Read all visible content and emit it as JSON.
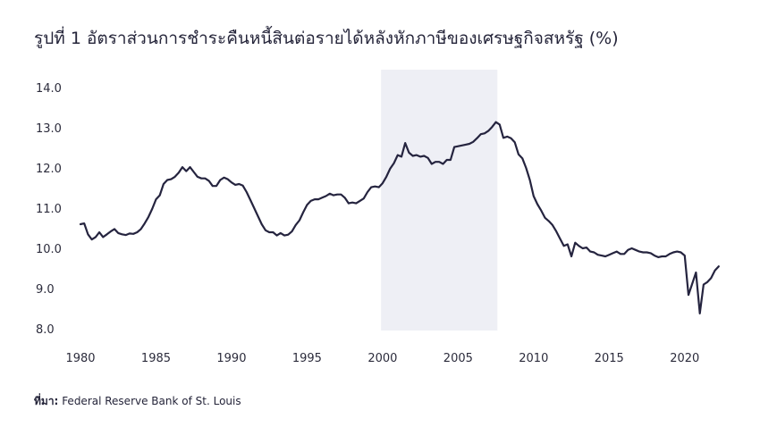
{
  "chart_data": {
    "type": "line",
    "title": "รูปที่ 1 อัตราส่วนการชำระคืนหนี้สินต่อรายได้หลังหักภาษีของเศรษฐกิจสหรัฐ (%)",
    "xlabel": "",
    "ylabel": "",
    "xlim": [
      1980,
      2022.5
    ],
    "ylim": [
      8.0,
      14.0
    ],
    "x_ticks": [
      "1980",
      "1985",
      "1990",
      "1995",
      "2000",
      "2005",
      "2010",
      "2015",
      "2020"
    ],
    "y_ticks": [
      "14.0",
      "13.0",
      "12.0",
      "11.0",
      "10.0",
      "9.0",
      "8.0"
    ],
    "grid": false,
    "shaded_region": {
      "x_start": 1999.9,
      "x_end": 2007.6,
      "color": "#eeeff5"
    },
    "series": [
      {
        "color": "#25243f",
        "x": [
          1980.0,
          1980.25,
          1980.5,
          1980.75,
          1981.0,
          1981.25,
          1981.5,
          1981.75,
          1982.0,
          1982.25,
          1982.5,
          1982.75,
          1983.0,
          1983.25,
          1983.5,
          1983.75,
          1984.0,
          1984.25,
          1984.5,
          1984.75,
          1985.0,
          1985.25,
          1985.5,
          1985.75,
          1986.0,
          1986.25,
          1986.5,
          1986.75,
          1987.0,
          1987.25,
          1987.5,
          1987.75,
          1988.0,
          1988.25,
          1988.5,
          1988.75,
          1989.0,
          1989.25,
          1989.5,
          1989.75,
          1990.0,
          1990.25,
          1990.5,
          1990.75,
          1991.0,
          1991.25,
          1991.5,
          1991.75,
          1992.0,
          1992.25,
          1992.5,
          1992.75,
          1993.0,
          1993.25,
          1993.5,
          1993.75,
          1994.0,
          1994.25,
          1994.5,
          1994.75,
          1995.0,
          1995.25,
          1995.5,
          1995.75,
          1996.0,
          1996.25,
          1996.5,
          1996.75,
          1997.0,
          1997.25,
          1997.5,
          1997.75,
          1998.0,
          1998.25,
          1998.5,
          1998.75,
          1999.0,
          1999.25,
          1999.5,
          1999.75,
          2000.0,
          2000.25,
          2000.5,
          2000.75,
          2001.0,
          2001.25,
          2001.5,
          2001.75,
          2002.0,
          2002.25,
          2002.5,
          2002.75,
          2003.0,
          2003.25,
          2003.5,
          2003.75,
          2004.0,
          2004.25,
          2004.5,
          2004.75,
          2005.0,
          2005.25,
          2005.5,
          2005.75,
          2006.0,
          2006.25,
          2006.5,
          2006.75,
          2007.0,
          2007.25,
          2007.5,
          2007.75,
          2008.0,
          2008.25,
          2008.5,
          2008.75,
          2009.0,
          2009.25,
          2009.5,
          2009.75,
          2010.0,
          2010.25,
          2010.5,
          2010.75,
          2011.0,
          2011.25,
          2011.5,
          2011.75,
          2012.0,
          2012.25,
          2012.5,
          2012.75,
          2013.0,
          2013.25,
          2013.5,
          2013.75,
          2014.0,
          2014.25,
          2014.5,
          2014.75,
          2015.0,
          2015.25,
          2015.5,
          2015.75,
          2016.0,
          2016.25,
          2016.5,
          2016.75,
          2017.0,
          2017.25,
          2017.5,
          2017.75,
          2018.0,
          2018.25,
          2018.5,
          2018.75,
          2019.0,
          2019.25,
          2019.5,
          2019.75,
          2020.0,
          2020.25,
          2020.5,
          2020.75,
          2021.0,
          2021.25,
          2021.5,
          2021.75,
          2022.0,
          2022.25
        ],
        "values": [
          10.6,
          10.62,
          10.35,
          10.22,
          10.28,
          10.4,
          10.28,
          10.35,
          10.42,
          10.48,
          10.38,
          10.35,
          10.33,
          10.37,
          10.36,
          10.4,
          10.48,
          10.62,
          10.78,
          10.98,
          11.22,
          11.32,
          11.6,
          11.7,
          11.72,
          11.78,
          11.88,
          12.02,
          11.92,
          12.02,
          11.9,
          11.78,
          11.74,
          11.74,
          11.68,
          11.55,
          11.55,
          11.7,
          11.76,
          11.72,
          11.64,
          11.58,
          11.6,
          11.56,
          11.4,
          11.2,
          11.0,
          10.8,
          10.6,
          10.45,
          10.4,
          10.4,
          10.32,
          10.38,
          10.32,
          10.34,
          10.42,
          10.58,
          10.7,
          10.9,
          11.08,
          11.18,
          11.22,
          11.22,
          11.26,
          11.3,
          11.36,
          11.32,
          11.34,
          11.34,
          11.26,
          11.12,
          11.14,
          11.12,
          11.18,
          11.24,
          11.4,
          11.52,
          11.54,
          11.52,
          11.62,
          11.78,
          11.98,
          12.12,
          12.32,
          12.28,
          12.62,
          12.38,
          12.3,
          12.32,
          12.28,
          12.3,
          12.25,
          12.1,
          12.15,
          12.15,
          12.1,
          12.2,
          12.2,
          12.52,
          12.54,
          12.56,
          12.58,
          12.6,
          12.65,
          12.74,
          12.84,
          12.86,
          12.92,
          13.02,
          13.14,
          13.08,
          12.75,
          12.78,
          12.74,
          12.64,
          12.34,
          12.24,
          12.0,
          11.7,
          11.3,
          11.1,
          10.94,
          10.76,
          10.68,
          10.58,
          10.42,
          10.24,
          10.06,
          10.1,
          9.8,
          10.14,
          10.06,
          10.0,
          10.02,
          9.92,
          9.9,
          9.84,
          9.82,
          9.8,
          9.84,
          9.88,
          9.92,
          9.86,
          9.86,
          9.96,
          10.0,
          9.96,
          9.92,
          9.9,
          9.9,
          9.88,
          9.82,
          9.78,
          9.8,
          9.8,
          9.86,
          9.9,
          9.92,
          9.9,
          9.82,
          8.84,
          9.12,
          9.4,
          8.38,
          9.1,
          9.16,
          9.26,
          9.45,
          9.55
        ]
      }
    ]
  },
  "source": {
    "label": "ที่มา:",
    "text": "Federal Reserve Bank of St. Louis"
  }
}
